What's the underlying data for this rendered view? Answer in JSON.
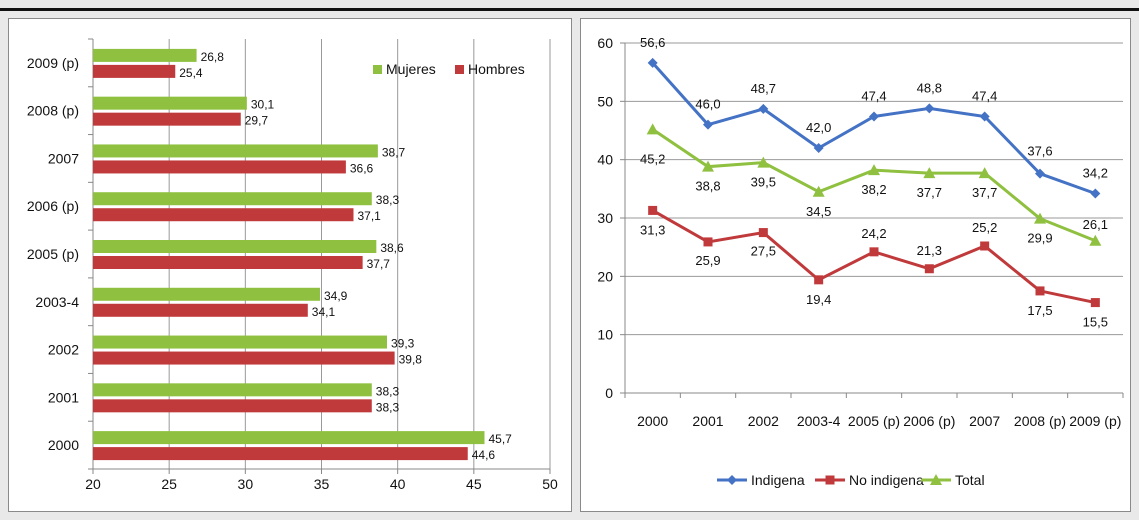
{
  "chart_data": [
    {
      "type": "bar",
      "orientation": "horizontal",
      "categories": [
        "2009 (p)",
        "2008 (p)",
        "2007",
        "2006 (p)",
        "2005 (p)",
        "2003-4",
        "2002",
        "2001",
        "2000"
      ],
      "series": [
        {
          "name": "Mujeres",
          "color": "#8fc040",
          "values": [
            26.8,
            30.1,
            38.7,
            38.3,
            38.6,
            34.9,
            39.3,
            38.3,
            45.7
          ],
          "labels": [
            "26,8",
            "30,1",
            "38,7",
            "38,3",
            "38,6",
            "34,9",
            "39,3",
            "38,3",
            "45,7"
          ]
        },
        {
          "name": "Hombres",
          "color": "#c0393b",
          "values": [
            25.4,
            29.7,
            36.6,
            37.1,
            37.7,
            34.1,
            39.8,
            38.3,
            44.6
          ],
          "labels": [
            "25,4",
            "29,7",
            "36,6",
            "37,1",
            "37,7",
            "34,1",
            "39,8",
            "38,3",
            "44,6"
          ]
        }
      ],
      "xlim": [
        20,
        50
      ],
      "xticks": [
        "20",
        "25",
        "30",
        "35",
        "40",
        "45",
        "50"
      ],
      "legend": "top-right",
      "grid": "vertical"
    },
    {
      "type": "line",
      "categories": [
        "2000",
        "2001",
        "2002",
        "2003-4",
        "2005 (p)",
        "2006 (p)",
        "2007",
        "2008 (p)",
        "2009 (p)"
      ],
      "series": [
        {
          "name": "Indigena",
          "color": "#4472c4",
          "marker": "diamond",
          "values": [
            56.6,
            46.0,
            48.7,
            42.0,
            47.4,
            48.8,
            47.4,
            37.6,
            34.2
          ],
          "labels": [
            "56,6",
            "46,0",
            "48,7",
            "42,0",
            "47,4",
            "48,8",
            "47,4",
            "37,6",
            "34,2"
          ]
        },
        {
          "name": "No indigena",
          "color": "#c0393b",
          "marker": "square",
          "values": [
            31.3,
            25.9,
            27.5,
            19.4,
            24.2,
            21.3,
            25.2,
            17.5,
            15.5
          ],
          "labels": [
            "31,3",
            "25,9",
            "27,5",
            "19,4",
            "24,2",
            "21,3",
            "25,2",
            "17,5",
            "15,5"
          ]
        },
        {
          "name": "Total",
          "color": "#8fc040",
          "marker": "triangle",
          "values": [
            45.2,
            38.8,
            39.5,
            34.5,
            38.2,
            37.7,
            37.7,
            29.9,
            26.1
          ],
          "labels": [
            "45,2",
            "38,8",
            "39,5",
            "34,5",
            "38,2",
            "37,7",
            "37,7",
            "29,9",
            "26,1"
          ]
        }
      ],
      "ylim": [
        0,
        60
      ],
      "yticks": [
        "0",
        "10",
        "20",
        "30",
        "40",
        "50",
        "60"
      ],
      "legend": "bottom",
      "grid": "horizontal"
    }
  ]
}
